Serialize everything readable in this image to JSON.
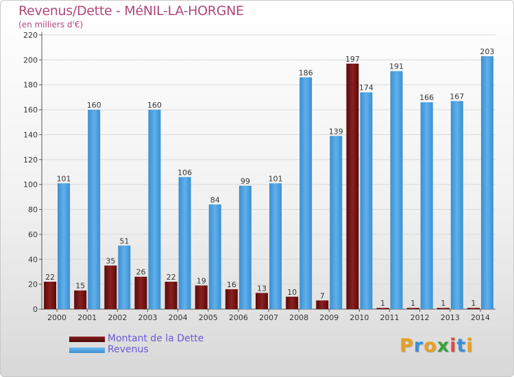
{
  "chart_data": {
    "type": "bar",
    "title": "Revenus/Dette - MéNIL-LA-HORGNE",
    "subtitle": "(en milliers d'€)",
    "categories": [
      "2000",
      "2001",
      "2002",
      "2003",
      "2004",
      "2005",
      "2006",
      "2007",
      "2008",
      "2009",
      "2010",
      "2011",
      "2012",
      "2013",
      "2014"
    ],
    "series": [
      {
        "name": "Montant de la Dette",
        "color": "#7a1414",
        "values": [
          22,
          15,
          35,
          26,
          22,
          19,
          16,
          13,
          10,
          7,
          197,
          1,
          1,
          1,
          1
        ]
      },
      {
        "name": "Revenus",
        "color": "#4aa3e4",
        "values": [
          101,
          160,
          51,
          160,
          106,
          84,
          99,
          101,
          186,
          139,
          174,
          191,
          166,
          167,
          203
        ]
      }
    ],
    "ylim": [
      0,
      220
    ],
    "yticks": [
      0,
      20,
      40,
      60,
      80,
      100,
      120,
      140,
      160,
      180,
      200,
      220
    ],
    "grid": true,
    "legend_position": "bottom-left"
  },
  "logo": {
    "letters": [
      "P",
      "r",
      "o",
      "x",
      "i",
      "t",
      "i"
    ],
    "colors": [
      "#e8a020",
      "#3a8fd8",
      "#e8a020",
      "#3aa03a",
      "#e04a3a",
      "#3a8fd8",
      "#e8a020"
    ]
  },
  "colors": {
    "title": "#b0487a",
    "axis_text": "#333333",
    "grid": "#d9d9d9"
  }
}
